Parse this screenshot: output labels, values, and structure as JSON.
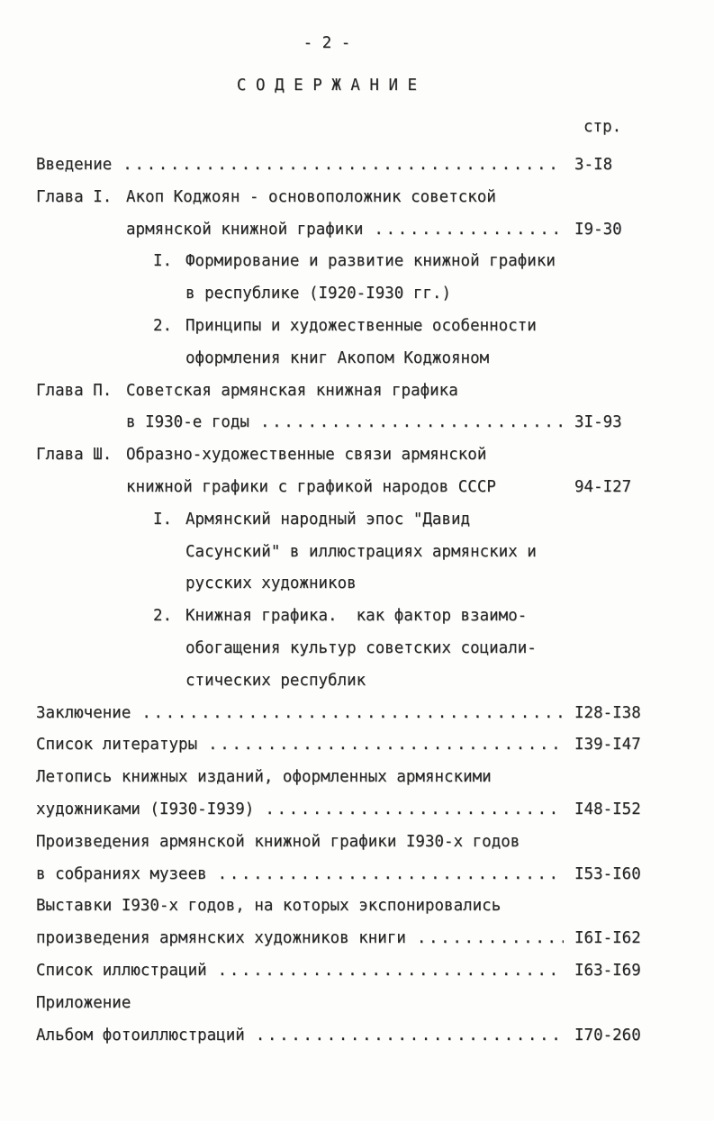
{
  "page": {
    "number_label": "- 2 -",
    "title": "С О Д Е Р Ж А Н И Е",
    "column_header": "стр.",
    "ink_color": "#262626",
    "paper_color": "#fdfdfc"
  },
  "toc": [
    {
      "type": "entry",
      "text": "Введение",
      "dots": true,
      "page": "3-I8"
    },
    {
      "type": "chapter",
      "prefix": "Глава I.",
      "text": "Акоп Коджоян - основоположник советской"
    },
    {
      "type": "chapter-cont",
      "text": "армянской книжной графики",
      "dots": true,
      "page": "I9-30"
    },
    {
      "type": "sub",
      "prefix": "I.",
      "text": "Формирование и развитие книжной графики"
    },
    {
      "type": "sub-cont",
      "text": "в республике (I920-I930 гг.)"
    },
    {
      "type": "sub",
      "prefix": "2.",
      "text": "Принципы и художественные особенности"
    },
    {
      "type": "sub-cont",
      "text": "оформления книг Акопом Коджояном"
    },
    {
      "type": "chapter",
      "prefix": "Глава П.",
      "text": "Советская армянская книжная графика"
    },
    {
      "type": "chapter-cont",
      "text": "в I930-е годы",
      "dots": true,
      "page": "3I-93"
    },
    {
      "type": "chapter",
      "prefix": "Глава Ш.",
      "text": "Образно-художественные связи армянской"
    },
    {
      "type": "chapter-cont",
      "text": "книжной графики с графикой народов СССР",
      "dots": false,
      "page": "94-I27"
    },
    {
      "type": "sub",
      "prefix": "I.",
      "text": "Армянский народный эпос \"Давид"
    },
    {
      "type": "sub-cont",
      "text": "Сасунский\" в иллюстрациях армянских и"
    },
    {
      "type": "sub-cont",
      "text": "русских художников"
    },
    {
      "type": "sub",
      "prefix": "2.",
      "text": "Книжная графика.  как фактор взаимо-"
    },
    {
      "type": "sub-cont",
      "text": "обогащения культур советских социали-"
    },
    {
      "type": "sub-cont",
      "text": "стических республик"
    },
    {
      "type": "entry",
      "text": "Заключение",
      "dots": true,
      "page": "I28-I38"
    },
    {
      "type": "entry",
      "text": "Список литературы",
      "dots": true,
      "page": "I39-I47"
    },
    {
      "type": "entry",
      "text": "Летопись книжных изданий, оформленных армянскими"
    },
    {
      "type": "entry",
      "text": "художниками (I930-I939)",
      "dots": true,
      "page": "I48-I52"
    },
    {
      "type": "entry",
      "text": "Произведения армянской книжной графики I930-х годов"
    },
    {
      "type": "entry",
      "text": "в собраниях музеев",
      "dots": true,
      "page": "I53-I60"
    },
    {
      "type": "entry",
      "text": "Выставки I930-х годов, на которых экспонировались"
    },
    {
      "type": "entry",
      "text": "произведения армянских художников книги",
      "dots": true,
      "page": "I6I-I62"
    },
    {
      "type": "entry",
      "text": "Список иллюстраций",
      "dots": true,
      "page": "I63-I69"
    },
    {
      "type": "entry",
      "text": "Приложение"
    },
    {
      "type": "entry",
      "text": "Альбом фотоиллюстраций",
      "dots": true,
      "page": "I70-260"
    }
  ]
}
